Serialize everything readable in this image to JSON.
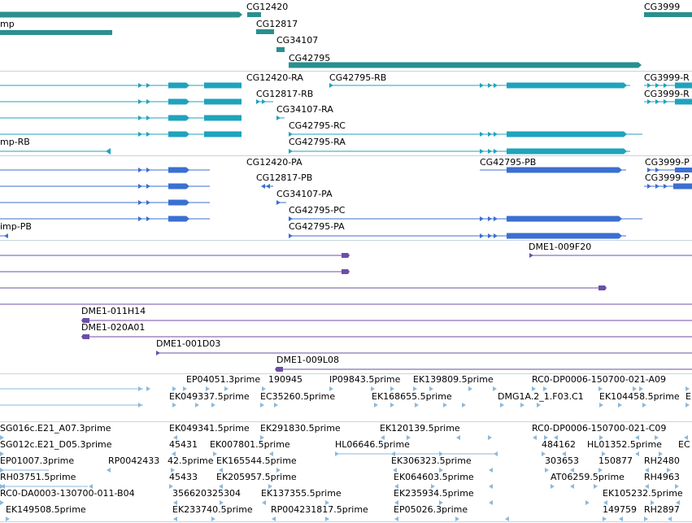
{
  "colors": {
    "gene": "#2a8f8f",
    "transcript_ra": "#1fa3bc",
    "transcript_pb": "#3b6fd1",
    "clone": "#6b4fa8",
    "est": "#8cb9dc",
    "separator": "#c8d4dc"
  },
  "genes": {
    "labels": [
      "CG12420",
      "CG3999",
      "mp",
      "CG12817",
      "CG34107",
      "CG42795"
    ]
  },
  "transcripts": {
    "labels": [
      "CG12420-RA",
      "CG42795-RB",
      "CG3999-R",
      "CG12817-RB",
      "CG3999-R",
      "CG34107-RA",
      "CG42795-RC",
      "mp-RB",
      "CG42795-RA"
    ]
  },
  "proteins": {
    "labels": [
      "CG12420-PA",
      "CG42795-PB",
      "CG3999-P",
      "CG12817-PB",
      "CG3999-P",
      "CG34107-PA",
      "CG42795-PC",
      "imp-PB",
      "CG42795-PA"
    ]
  },
  "clones": {
    "labels": [
      "DME1-009F20",
      "DME1-011H14",
      "DME1-020A01",
      "DME1-001D03",
      "DME1-009L08"
    ]
  },
  "ests_top": {
    "labels": [
      "EP04051.3prime",
      "190945",
      "IP09843.5prime",
      "EK139809.5prime",
      "RC0-DP0006-150700-021-A09",
      "EK049337.5prime",
      "EC35260.5prime",
      "EK168655.5prime",
      "DMG1A.2_1.F03.C1",
      "EK104458.5prime",
      "E"
    ]
  },
  "ests_bottom": {
    "labels": [
      "SG016c.E21_A07.3prime",
      "EK049341.5prime",
      "EK291830.5prime",
      "EK120139.5prime",
      "RC0-DP0006-150700-021-C09",
      "SG012c.E21_D05.3prime",
      "45431",
      "EK007801.5prime",
      "HL06646.5prime",
      "484162",
      "HL01352.5prime",
      "EC",
      "EP01007.3prime",
      "RP0042433",
      "42.5prime",
      "EK165544.5prime",
      "EK306323.5prime",
      "303653",
      "150877",
      "RH2480",
      "RH03751.5prime",
      "45433",
      "EK205957.5prime",
      "EK064603.5prime",
      "AT06259.5prime",
      "RH4963",
      "RC0-DA0003-130700-011-B04",
      "356620325304",
      "EK137355.5prime",
      "EK235934.5prime",
      "EK105232.5prime",
      "EK149508.5prime",
      "EK233740.5prime",
      "RP004231817.5prime",
      "EP05026.3prime",
      "149759",
      "RH2897"
    ]
  }
}
